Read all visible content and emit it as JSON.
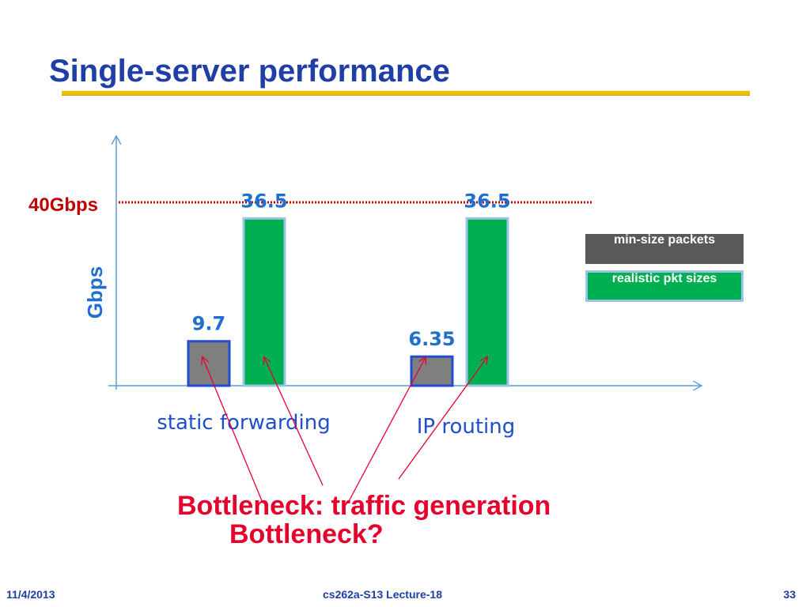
{
  "slide": {
    "title": "Single-server performance",
    "footer_date": "11/4/2013",
    "footer_course": "cs262a-S13 Lecture-18",
    "footer_page": "33"
  },
  "chart_data": {
    "type": "bar",
    "ylabel": "Gbps",
    "xlabel": "",
    "categories": [
      "static forwarding",
      "IP routing"
    ],
    "series": [
      {
        "name": "min-size packets",
        "color": "#7f7f7f",
        "values": [
          9.7,
          6.35
        ]
      },
      {
        "name": "realistic pkt sizes",
        "color": "#00b050",
        "values": [
          36.5,
          36.5
        ]
      }
    ],
    "data_labels": [
      [
        "9.7",
        "6.35"
      ],
      [
        "36.5",
        "36.5"
      ]
    ],
    "reference_line": {
      "label": "40Gbps",
      "value": 40,
      "color": "#c00000",
      "style": "dotted"
    },
    "ylim": [
      0,
      50
    ],
    "grid": false,
    "legend_position": "right",
    "annotations": [
      {
        "text": "Bottleneck: traffic generation",
        "color": "#e8002d"
      },
      {
        "text": "Bottleneck?",
        "color": "#e8002d"
      }
    ]
  }
}
